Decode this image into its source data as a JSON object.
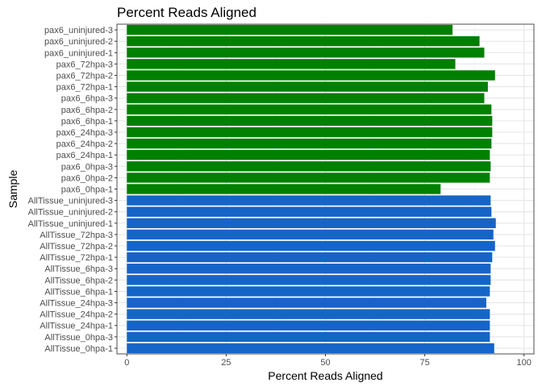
{
  "chart_data": {
    "type": "bar",
    "orientation": "horizontal",
    "title": "Percent Reads Aligned",
    "xlabel": "Percent Reads Aligned",
    "ylabel": "Sample",
    "xlim": [
      -2.5,
      102.5
    ],
    "xticks": [
      "0",
      "25",
      "50",
      "75",
      "100"
    ],
    "xtick_values": [
      0,
      25,
      50,
      75,
      100
    ],
    "grid": true,
    "legend": "none",
    "colors": {
      "pax6": "#008000",
      "AllTissue": "#1565c8",
      "grid_major": "#e6e6e6",
      "grid_minor": "#f2f2f2",
      "panel_border": "#4d4d4d",
      "text": "#000000",
      "tick_text": "#4d4d4d"
    },
    "categories": [
      "pax6_uninjured-3",
      "pax6_uninjured-2",
      "pax6_uninjured-1",
      "pax6_72hpa-3",
      "pax6_72hpa-2",
      "pax6_72hpa-1",
      "pax6_6hpa-3",
      "pax6_6hpa-2",
      "pax6_6hpa-1",
      "pax6_24hpa-3",
      "pax6_24hpa-2",
      "pax6_24hpa-1",
      "pax6_0hpa-3",
      "pax6_0hpa-2",
      "pax6_0hpa-1",
      "AllTissue_uninjured-3",
      "AllTissue_uninjured-2",
      "AllTissue_uninjured-1",
      "AllTissue_72hpa-3",
      "AllTissue_72hpa-2",
      "AllTissue_72hpa-1",
      "AllTissue_6hpa-3",
      "AllTissue_6hpa-2",
      "AllTissue_6hpa-1",
      "AllTissue_24hpa-3",
      "AllTissue_24hpa-2",
      "AllTissue_24hpa-1",
      "AllTissue_0hpa-3",
      "AllTissue_0hpa-1"
    ],
    "values": [
      82.0,
      88.8,
      90.0,
      82.7,
      92.7,
      90.9,
      90.0,
      91.8,
      92.0,
      92.0,
      91.8,
      91.4,
      91.6,
      91.4,
      79.0,
      91.6,
      91.8,
      92.9,
      92.3,
      92.7,
      92.0,
      91.6,
      91.6,
      91.4,
      90.5,
      91.4,
      91.4,
      91.4,
      92.5
    ],
    "groups": [
      "pax6",
      "pax6",
      "pax6",
      "pax6",
      "pax6",
      "pax6",
      "pax6",
      "pax6",
      "pax6",
      "pax6",
      "pax6",
      "pax6",
      "pax6",
      "pax6",
      "pax6",
      "AllTissue",
      "AllTissue",
      "AllTissue",
      "AllTissue",
      "AllTissue",
      "AllTissue",
      "AllTissue",
      "AllTissue",
      "AllTissue",
      "AllTissue",
      "AllTissue",
      "AllTissue",
      "AllTissue",
      "AllTissue"
    ]
  }
}
